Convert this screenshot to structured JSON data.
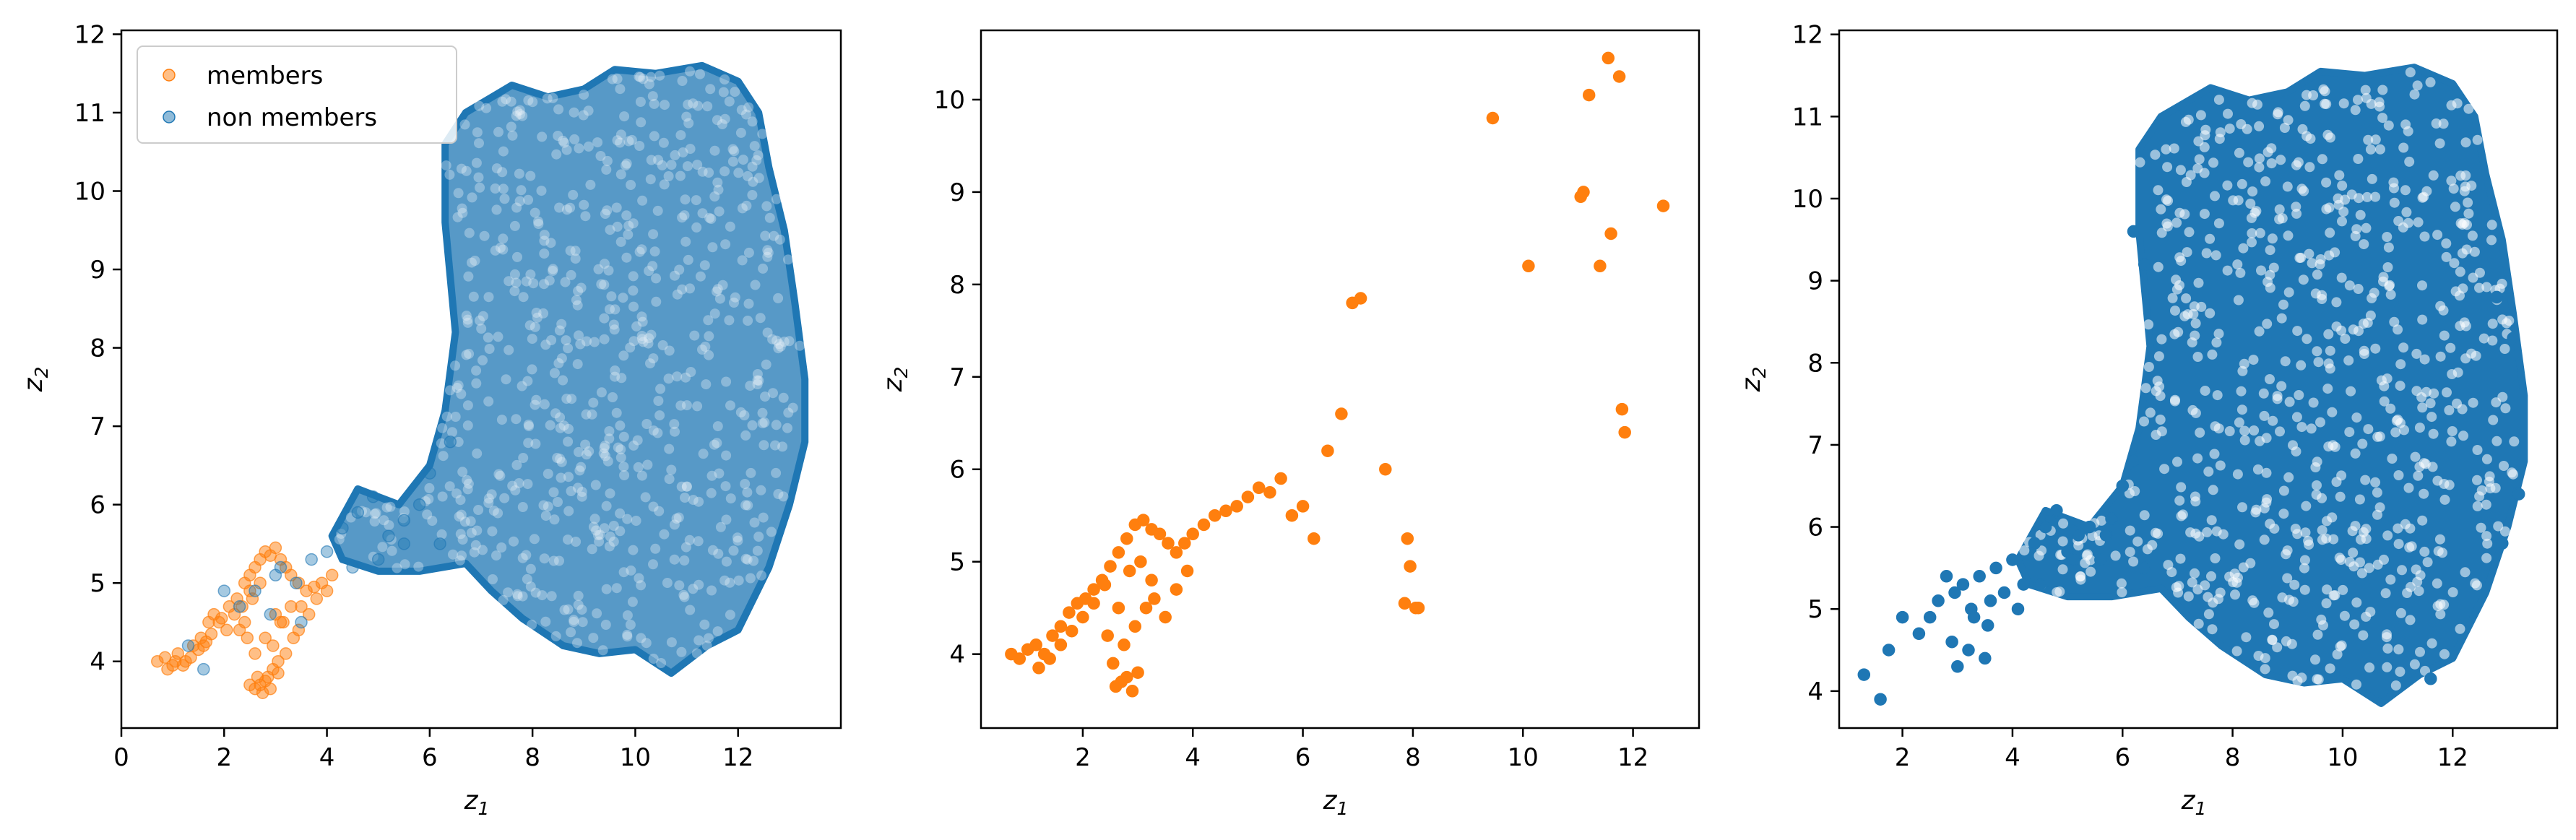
{
  "colors": {
    "members": "#ff7f0e",
    "non_members": "#1f77b4"
  },
  "chart_data": [
    {
      "type": "scatter",
      "xlabel": "z",
      "xlabel_sub": "1",
      "ylabel": "z",
      "ylabel_sub": "2",
      "xlim": [
        0,
        14.0
      ],
      "ylim": [
        3.15,
        12.05
      ],
      "xticks": [
        0,
        2,
        4,
        6,
        8,
        10,
        12
      ],
      "yticks": [
        4,
        5,
        6,
        7,
        8,
        9,
        10,
        11,
        12
      ],
      "legend": {
        "position": "top-left",
        "entries": [
          "members",
          "non members"
        ]
      },
      "series": [
        {
          "name": "members",
          "color": "#ff7f0e",
          "alpha": 0.5,
          "x": [
            0.7,
            0.85,
            1.0,
            1.1,
            1.25,
            1.4,
            1.55,
            1.7,
            1.8,
            1.95,
            2.1,
            2.25,
            2.4,
            2.5,
            2.6,
            2.7,
            2.8,
            2.9,
            3.0,
            3.1,
            3.2,
            3.3,
            3.45,
            3.6,
            3.75,
            3.9,
            4.1,
            2.6,
            2.7,
            2.8,
            2.85,
            2.95,
            3.05,
            2.5,
            2.65,
            2.75,
            2.9,
            3.05,
            3.2,
            3.35,
            1.6,
            1.75,
            1.9,
            2.05,
            2.2,
            2.35,
            2.5,
            1.2,
            1.35,
            1.5,
            1.65,
            0.9,
            1.05,
            2.4,
            2.55,
            2.7,
            3.5,
            3.65,
            3.8,
            4.0,
            2.3,
            2.45,
            3.15,
            3.3,
            3.45,
            2.95,
            3.1,
            2.6,
            2.8,
            3.0
          ],
          "y": [
            4.0,
            4.05,
            3.95,
            4.1,
            4.0,
            4.2,
            4.3,
            4.5,
            4.6,
            4.55,
            4.7,
            4.8,
            5.0,
            5.1,
            5.2,
            5.3,
            5.4,
            5.35,
            5.45,
            5.3,
            5.2,
            5.1,
            5.0,
            4.9,
            4.95,
            5.0,
            5.1,
            3.65,
            3.7,
            3.75,
            3.8,
            3.9,
            4.0,
            3.7,
            3.8,
            3.6,
            3.65,
            3.85,
            4.1,
            4.3,
            4.2,
            4.35,
            4.5,
            4.4,
            4.6,
            4.7,
            4.9,
            3.95,
            4.05,
            4.15,
            4.25,
            3.9,
            4.0,
            4.5,
            4.8,
            5.0,
            4.7,
            4.6,
            4.8,
            4.9,
            4.4,
            4.3,
            4.5,
            4.7,
            4.4,
            4.2,
            4.5,
            4.1,
            4.3,
            4.6
          ]
        },
        {
          "name": "non members",
          "color": "#1f77b4",
          "alpha": 0.4,
          "x": [
            1.3,
            1.6,
            2.0,
            2.3,
            2.6,
            2.9,
            3.1,
            3.4,
            3.7,
            4.0,
            4.3,
            4.6,
            4.9,
            5.2,
            5.5,
            5.8,
            6.0,
            6.2,
            6.4,
            4.5,
            5.0,
            5.5,
            3.5,
            3.0
          ],
          "y": [
            4.2,
            3.9,
            4.9,
            4.7,
            4.9,
            4.6,
            5.2,
            5.0,
            5.3,
            5.4,
            5.7,
            5.9,
            6.1,
            5.6,
            5.8,
            6.0,
            6.4,
            5.5,
            6.8,
            5.2,
            5.3,
            5.5,
            4.5,
            5.1
          ]
        }
      ],
      "regions": [
        {
          "series": "non members",
          "color": "#1f77b4",
          "outline": [
            [
              6.3,
              9.6
            ],
            [
              6.3,
              10.6
            ],
            [
              6.7,
              11.0
            ],
            [
              7.6,
              11.35
            ],
            [
              8.3,
              11.2
            ],
            [
              9.0,
              11.3
            ],
            [
              9.6,
              11.55
            ],
            [
              10.4,
              11.5
            ],
            [
              11.3,
              11.6
            ],
            [
              12.0,
              11.4
            ],
            [
              12.4,
              11.0
            ],
            [
              12.6,
              10.3
            ],
            [
              12.9,
              9.5
            ],
            [
              13.1,
              8.6
            ],
            [
              13.3,
              7.6
            ],
            [
              13.3,
              6.8
            ],
            [
              13.0,
              6.0
            ],
            [
              12.6,
              5.2
            ],
            [
              12.0,
              4.4
            ],
            [
              11.4,
              4.2
            ],
            [
              10.7,
              3.85
            ],
            [
              10.0,
              4.15
            ],
            [
              9.3,
              4.1
            ],
            [
              8.6,
              4.2
            ],
            [
              7.8,
              4.55
            ],
            [
              7.2,
              4.9
            ],
            [
              6.7,
              5.25
            ],
            [
              5.8,
              5.15
            ],
            [
              5.0,
              5.15
            ],
            [
              4.3,
              5.3
            ],
            [
              4.1,
              5.6
            ],
            [
              4.6,
              6.2
            ],
            [
              5.4,
              6.0
            ],
            [
              6.0,
              6.5
            ],
            [
              6.3,
              7.2
            ],
            [
              6.5,
              8.2
            ]
          ]
        }
      ]
    },
    {
      "type": "scatter",
      "xlabel": "z",
      "xlabel_sub": "1",
      "ylabel": "z",
      "ylabel_sub": "2",
      "xlim": [
        0.15,
        13.2
      ],
      "ylim": [
        3.2,
        10.75
      ],
      "xticks": [
        2,
        4,
        6,
        8,
        10,
        12
      ],
      "yticks": [
        4,
        5,
        6,
        7,
        8,
        9,
        10
      ],
      "series": [
        {
          "name": "members",
          "color": "#ff7f0e",
          "alpha": 1.0,
          "x": [
            0.7,
            0.85,
            1.0,
            1.15,
            1.3,
            1.45,
            1.6,
            1.75,
            1.9,
            2.05,
            2.2,
            2.35,
            2.5,
            2.65,
            2.8,
            2.95,
            3.1,
            3.25,
            3.4,
            3.55,
            3.7,
            3.85,
            4.0,
            4.2,
            4.4,
            4.6,
            4.8,
            5.0,
            5.2,
            5.4,
            5.6,
            5.8,
            6.0,
            6.2,
            6.45,
            6.7,
            6.9,
            7.05,
            7.5,
            7.9,
            7.95,
            8.05,
            7.85,
            8.1,
            9.45,
            10.1,
            11.05,
            11.1,
            11.2,
            11.4,
            11.55,
            11.6,
            11.75,
            11.8,
            11.85,
            12.55,
            2.6,
            2.7,
            2.8,
            2.9,
            3.0,
            2.55,
            2.75,
            2.95,
            3.15,
            1.2,
            1.4,
            1.6,
            1.8,
            2.0,
            2.2,
            2.4,
            3.3,
            3.5,
            3.7,
            3.9,
            2.45,
            2.65,
            2.85,
            3.05,
            3.25
          ],
          "y": [
            4.0,
            3.95,
            4.05,
            4.1,
            4.0,
            4.2,
            4.3,
            4.45,
            4.55,
            4.6,
            4.7,
            4.8,
            4.95,
            5.1,
            5.25,
            5.4,
            5.45,
            5.35,
            5.3,
            5.2,
            5.1,
            5.2,
            5.3,
            5.4,
            5.5,
            5.55,
            5.6,
            5.7,
            5.8,
            5.75,
            5.9,
            5.5,
            5.6,
            5.25,
            6.2,
            6.6,
            7.8,
            7.85,
            6.0,
            5.25,
            4.95,
            4.5,
            4.55,
            4.5,
            9.8,
            8.2,
            8.95,
            9.0,
            10.05,
            8.2,
            10.45,
            8.55,
            10.25,
            6.65,
            6.4,
            8.85,
            3.65,
            3.7,
            3.75,
            3.6,
            3.8,
            3.9,
            4.1,
            4.3,
            4.5,
            3.85,
            3.95,
            4.1,
            4.25,
            4.4,
            4.55,
            4.75,
            4.6,
            4.4,
            4.7,
            4.9,
            4.2,
            4.5,
            4.9,
            5.0,
            4.8
          ]
        }
      ]
    },
    {
      "type": "scatter",
      "xlabel": "z",
      "xlabel_sub": "1",
      "ylabel": "z",
      "ylabel_sub": "2",
      "xlim": [
        0.85,
        13.9
      ],
      "ylim": [
        3.55,
        12.05
      ],
      "xticks": [
        2,
        4,
        6,
        8,
        10,
        12
      ],
      "yticks": [
        4,
        5,
        6,
        7,
        8,
        9,
        10,
        11,
        12
      ],
      "series": [
        {
          "name": "non members",
          "color": "#1f77b4",
          "alpha": 1.0,
          "x": [
            1.3,
            1.6,
            1.75,
            2.0,
            2.3,
            2.5,
            2.65,
            2.8,
            2.95,
            3.1,
            3.25,
            3.4,
            3.55,
            3.7,
            3.85,
            4.0,
            4.2,
            4.4,
            4.6,
            4.8,
            5.0,
            5.2,
            5.4,
            5.6,
            5.8,
            6.0,
            6.2,
            6.4,
            3.0,
            3.2,
            3.5,
            2.9,
            3.3,
            3.6,
            4.1,
            4.5,
            5.1,
            5.7,
            11.6,
            12.9,
            13.2,
            13.1,
            12.8,
            6.2,
            6.4
          ],
          "y": [
            4.2,
            3.9,
            4.5,
            4.9,
            4.7,
            4.9,
            5.1,
            5.4,
            5.2,
            5.3,
            5.0,
            5.4,
            4.8,
            5.5,
            5.2,
            5.6,
            5.3,
            5.8,
            6.0,
            6.2,
            5.7,
            5.9,
            6.0,
            5.6,
            6.1,
            6.5,
            6.8,
            5.5,
            4.3,
            4.5,
            4.4,
            4.6,
            4.9,
            5.1,
            5.0,
            5.3,
            5.6,
            5.9,
            4.15,
            5.8,
            6.4,
            8.3,
            8.8,
            9.6,
            9.2
          ]
        }
      ],
      "regions": [
        {
          "series": "non members",
          "color": "#1f77b4",
          "outline": [
            [
              6.3,
              9.6
            ],
            [
              6.3,
              10.6
            ],
            [
              6.7,
              11.0
            ],
            [
              7.6,
              11.35
            ],
            [
              8.3,
              11.2
            ],
            [
              9.0,
              11.3
            ],
            [
              9.6,
              11.55
            ],
            [
              10.4,
              11.5
            ],
            [
              11.3,
              11.6
            ],
            [
              12.0,
              11.4
            ],
            [
              12.4,
              11.0
            ],
            [
              12.6,
              10.3
            ],
            [
              12.9,
              9.5
            ],
            [
              13.1,
              8.6
            ],
            [
              13.3,
              7.6
            ],
            [
              13.3,
              6.8
            ],
            [
              13.0,
              6.0
            ],
            [
              12.6,
              5.2
            ],
            [
              12.0,
              4.4
            ],
            [
              11.4,
              4.2
            ],
            [
              10.7,
              3.85
            ],
            [
              10.0,
              4.15
            ],
            [
              9.3,
              4.1
            ],
            [
              8.6,
              4.2
            ],
            [
              7.8,
              4.55
            ],
            [
              7.2,
              4.9
            ],
            [
              6.7,
              5.25
            ],
            [
              5.8,
              5.15
            ],
            [
              5.0,
              5.15
            ],
            [
              4.3,
              5.3
            ],
            [
              4.1,
              5.6
            ],
            [
              4.6,
              6.2
            ],
            [
              5.4,
              6.0
            ],
            [
              6.0,
              6.5
            ],
            [
              6.3,
              7.2
            ],
            [
              6.5,
              8.2
            ]
          ]
        }
      ]
    }
  ]
}
